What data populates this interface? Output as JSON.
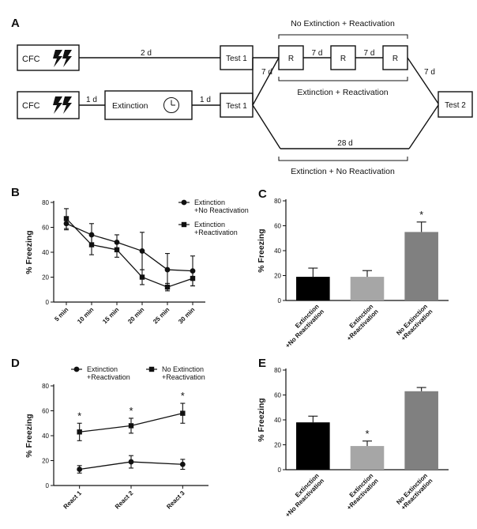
{
  "panel_labels": {
    "a": "A",
    "b": "B",
    "c": "C",
    "d": "D",
    "e": "E"
  },
  "diagram": {
    "cfc": "CFC",
    "extinction": "Extinction",
    "test1": "Test 1",
    "test2": "Test 2",
    "reactivation": "R",
    "d2": "2 d",
    "d1": "1 d",
    "d7": "7 d",
    "d28": "28 d",
    "group_no_ext_react": "No Extinction + Reactivation",
    "group_ext_react": "Extinction + Reactivation",
    "group_ext_no_react": "Extinction + No Reactivation"
  },
  "chart_data": [
    {
      "panel": "B",
      "type": "line",
      "ylabel": "% Freezing",
      "ylim": [
        0,
        80
      ],
      "yticks": [
        "0",
        "20",
        "40",
        "60",
        "80"
      ],
      "categories": [
        "5 min",
        "10 min",
        "15 min",
        "20 min",
        "25 min",
        "30 min"
      ],
      "legend_position": "top-right",
      "series": [
        {
          "name": "Extinction\n+No Reactivation",
          "marker": "circle",
          "values": [
            63,
            54,
            48,
            41,
            26,
            25
          ],
          "errors": [
            5,
            9,
            6,
            15,
            13,
            12
          ]
        },
        {
          "name": "Extinction\n+Reactivation",
          "marker": "square",
          "values": [
            67,
            46,
            42,
            20,
            12,
            19
          ],
          "errors": [
            8,
            8,
            6,
            6,
            3,
            6
          ]
        }
      ]
    },
    {
      "panel": "C",
      "type": "bar",
      "ylabel": "% Freezing",
      "ylim": [
        0,
        80
      ],
      "yticks": [
        "0",
        "20",
        "40",
        "60",
        "80"
      ],
      "categories": [
        "Extinction\n+No Reactivation",
        "Extinction\n+Reactivation",
        "No Extinction\n+Reactivation"
      ],
      "values": [
        19,
        19,
        55
      ],
      "errors": [
        7,
        5,
        8
      ],
      "colors": [
        "#000000",
        "#a6a6a6",
        "#808080"
      ],
      "annotations": [
        "",
        "",
        "*"
      ]
    },
    {
      "panel": "D",
      "type": "line",
      "ylabel": "% Freezing",
      "ylim": [
        0,
        80
      ],
      "yticks": [
        "0",
        "20",
        "40",
        "60",
        "80"
      ],
      "categories": [
        "React 1",
        "React 2",
        "React 3"
      ],
      "legend_position": "top",
      "series": [
        {
          "name": "Extinction\n+Reactivation",
          "marker": "circle",
          "values": [
            13,
            19,
            17
          ],
          "errors": [
            3,
            5,
            4
          ]
        },
        {
          "name": "No Extinction\n+Reactivation",
          "marker": "square",
          "values": [
            43,
            48,
            58
          ],
          "errors": [
            7,
            6,
            8
          ]
        }
      ],
      "annotations": [
        "*",
        "*",
        "*"
      ]
    },
    {
      "panel": "E",
      "type": "bar",
      "ylabel": "% Freezing",
      "ylim": [
        0,
        80
      ],
      "yticks": [
        "0",
        "20",
        "40",
        "60",
        "80"
      ],
      "categories": [
        "Extinction\n+No Reactivation",
        "Extinction\n+Reactivation",
        "No Extinction\n+Reactivation"
      ],
      "values": [
        38,
        19,
        63
      ],
      "errors": [
        5,
        4,
        3
      ],
      "colors": [
        "#000000",
        "#a6a6a6",
        "#808080"
      ],
      "annotations": [
        "",
        "*",
        ""
      ]
    }
  ]
}
